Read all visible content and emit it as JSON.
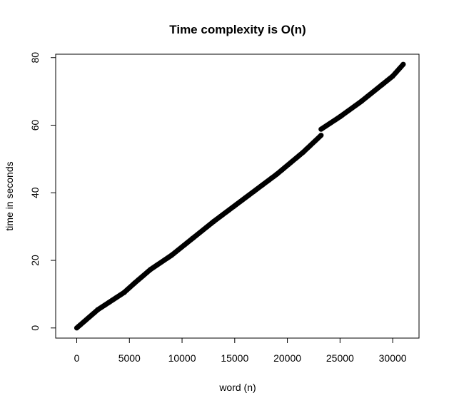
{
  "chart_data": {
    "type": "scatter",
    "title": "Time complexity is O(n)",
    "xlabel": "word (n)",
    "ylabel": "time in seconds",
    "xlim": [
      -2000,
      32500
    ],
    "ylim": [
      -3,
      81
    ],
    "xticks": [
      0,
      5000,
      10000,
      15000,
      20000,
      25000,
      30000
    ],
    "yticks": [
      0,
      20,
      40,
      60,
      80
    ],
    "grid": false,
    "legend": "none",
    "point_color": "#000000",
    "series": [
      {
        "segments": [
          [
            [
              0,
              0
            ],
            [
              2000,
              5.4
            ],
            [
              4500,
              10.5
            ],
            [
              5500,
              13.3
            ],
            [
              7000,
              17.3
            ],
            [
              9000,
              21.5
            ],
            [
              11000,
              26.5
            ],
            [
              13000,
              31.5
            ],
            [
              16000,
              38.5
            ],
            [
              19000,
              45.5
            ],
            [
              21500,
              52.0
            ],
            [
              23200,
              57.0
            ]
          ],
          [
            [
              23200,
              58.8
            ],
            [
              25000,
              62.5
            ],
            [
              27000,
              67.0
            ],
            [
              29000,
              72.0
            ],
            [
              30000,
              74.5
            ],
            [
              31000,
              78.0
            ]
          ]
        ]
      }
    ]
  }
}
